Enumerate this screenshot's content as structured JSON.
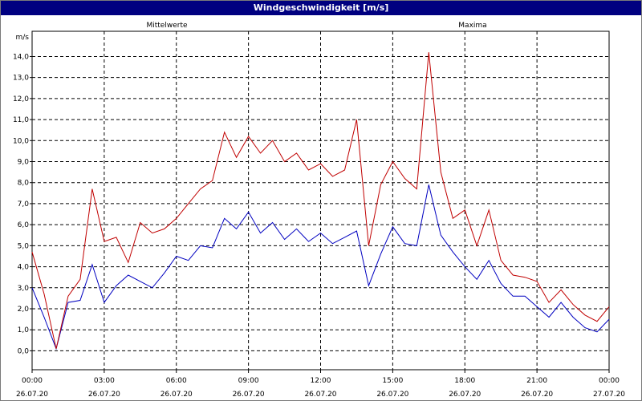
{
  "window": {
    "title": "Windgeschwindigkeit [m/s]"
  },
  "chart_data": {
    "type": "line",
    "title": "Windgeschwindigkeit [m/s]",
    "ylabel": "m/s",
    "xlabel": "",
    "ylim": [
      -0.9,
      15.2
    ],
    "xlim": [
      0,
      24
    ],
    "grid": true,
    "legend": "top",
    "yticks": [
      "0,0",
      "1,0",
      "2,0",
      "3,0",
      "4,0",
      "5,0",
      "6,0",
      "7,0",
      "8,0",
      "9,0",
      "10,0",
      "11,0",
      "12,0",
      "13,0",
      "14,0"
    ],
    "xticks": [
      {
        "time": "00:00",
        "date": "26.07.20"
      },
      {
        "time": "03:00",
        "date": "26.07.20"
      },
      {
        "time": "06:00",
        "date": "26.07.20"
      },
      {
        "time": "09:00",
        "date": "26.07.20"
      },
      {
        "time": "12:00",
        "date": "26.07.20"
      },
      {
        "time": "15:00",
        "date": "26.07.20"
      },
      {
        "time": "18:00",
        "date": "26.07.20"
      },
      {
        "time": "21:00",
        "date": "26.07.20"
      },
      {
        "time": "00:00",
        "date": "27.07.20"
      }
    ],
    "x": [
      0,
      0.5,
      1,
      1.5,
      2,
      2.5,
      3,
      3.5,
      4,
      4.5,
      5,
      5.5,
      6,
      6.5,
      7,
      7.5,
      8,
      8.5,
      9,
      9.5,
      10,
      10.5,
      11,
      11.5,
      12,
      12.5,
      13,
      13.5,
      14,
      14.5,
      15,
      15.5,
      16,
      16.5,
      17,
      17.5,
      18,
      18.5,
      19,
      19.5,
      20,
      20.5,
      21,
      21.5,
      22,
      22.5,
      23,
      23.5,
      24
    ],
    "series": [
      {
        "name": "Mittelwerte",
        "color": "#0000c0",
        "values": [
          3.0,
          1.6,
          0.1,
          2.3,
          2.4,
          4.1,
          2.3,
          3.1,
          3.6,
          3.3,
          3.0,
          3.7,
          4.5,
          4.3,
          5.0,
          4.9,
          6.3,
          5.8,
          6.6,
          5.6,
          6.1,
          5.3,
          5.8,
          5.2,
          5.6,
          5.1,
          5.4,
          5.7,
          3.1,
          4.6,
          5.9,
          5.1,
          5.0,
          7.9,
          5.5,
          4.7,
          4.0,
          3.4,
          4.3,
          3.2,
          2.6,
          2.6,
          2.1,
          1.6,
          2.3,
          1.6,
          1.1,
          0.9,
          1.5
        ]
      },
      {
        "name": "Maxima",
        "color": "#c00000",
        "values": [
          4.7,
          2.7,
          0.1,
          2.6,
          3.4,
          7.7,
          5.2,
          5.4,
          4.2,
          6.1,
          5.6,
          5.8,
          6.3,
          7.0,
          7.7,
          8.1,
          10.4,
          9.2,
          10.2,
          9.4,
          10.0,
          9.0,
          9.4,
          8.6,
          8.9,
          8.3,
          8.6,
          11.0,
          5.0,
          7.9,
          9.0,
          8.2,
          7.7,
          14.2,
          8.5,
          6.3,
          6.7,
          5.0,
          6.7,
          4.3,
          3.6,
          3.5,
          3.3,
          2.3,
          2.9,
          2.2,
          1.7,
          1.4,
          2.1
        ]
      }
    ]
  }
}
